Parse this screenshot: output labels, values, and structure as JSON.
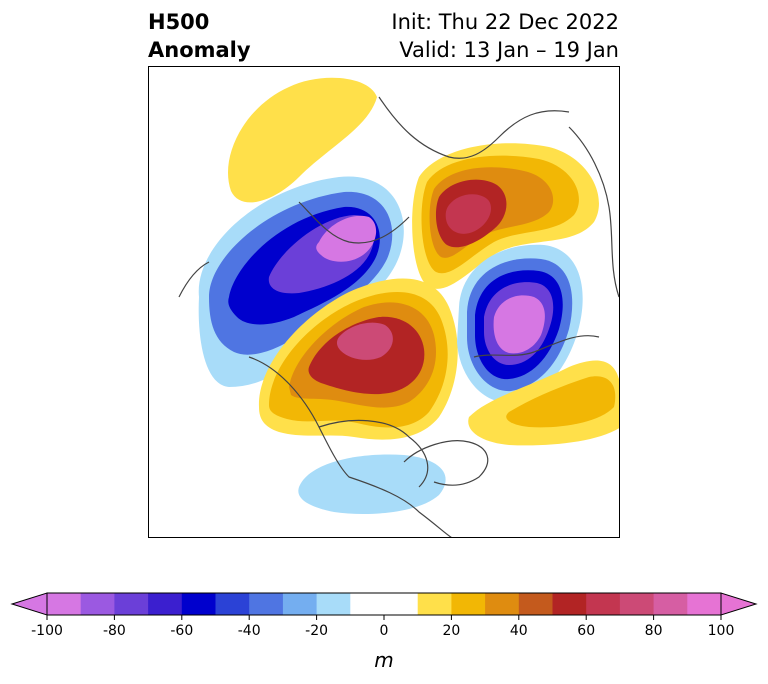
{
  "title": {
    "left_line1": "H500",
    "left_line2": "Anomaly",
    "right_line1": "Init: Thu 22 Dec 2022",
    "right_line2": "Valid: 13 Jan – 19 Jan"
  },
  "colorbar": {
    "unit": "m",
    "min": -100,
    "max": 100,
    "step": 10,
    "extend": "both",
    "tick_labels": [
      "-100",
      "-80",
      "-60",
      "-40",
      "-20",
      "0",
      "20",
      "40",
      "60",
      "80",
      "100"
    ],
    "colors": [
      "#d677e3",
      "#9b59e1",
      "#6b3fd8",
      "#3b1fcf",
      "#0000cd",
      "#2b42d6",
      "#4f75e2",
      "#74aef0",
      "#a8dcf9",
      "#ffffff",
      "#ffffff",
      "#ffe04a",
      "#f2b705",
      "#df8c10",
      "#c45a1d",
      "#b22424",
      "#c33650",
      "#cc4a76",
      "#d65ea3",
      "#e673d4"
    ],
    "under_color": "#d677e3",
    "over_color": "#e673d4"
  },
  "map": {
    "projection": "polar stereographic, North America / Arctic",
    "field": "500 hPa geopotential height anomaly",
    "features": [
      {
        "name": "negative anomaly over Bering Sea / Alaska",
        "sign": "negative",
        "peak": -100
      },
      {
        "name": "negative anomaly over northeast Asia",
        "sign": "negative",
        "peak": -100
      },
      {
        "name": "positive anomaly over western Canada / Arctic",
        "sign": "positive",
        "peak": 80
      },
      {
        "name": "positive anomaly over Scandinavia / Barents Sea",
        "sign": "positive",
        "peak": 80
      },
      {
        "name": "positive anomaly over western Europe",
        "sign": "positive",
        "peak": 20
      },
      {
        "name": "positive anomaly over North Pacific",
        "sign": "positive",
        "peak": 30
      },
      {
        "name": "negative anomaly over southern United States",
        "sign": "negative",
        "peak": -20
      }
    ]
  }
}
